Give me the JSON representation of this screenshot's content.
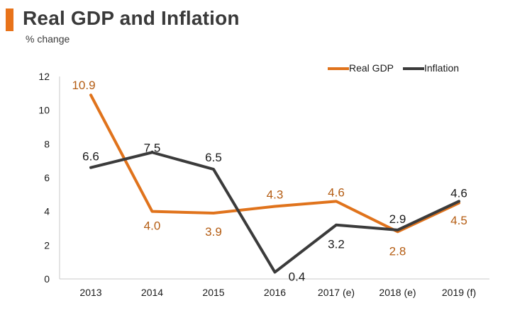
{
  "header": {
    "title": "Real GDP and Inflation",
    "subtitle": "% change"
  },
  "colors": {
    "accent": "#e8731a",
    "gdp_line": "#e0731c",
    "gdp_label": "#b45c12",
    "inflation_line": "#3b3b3b",
    "inflation_label": "#1a1a1a",
    "axis_text": "#1a1a1a"
  },
  "chart_data": {
    "type": "line",
    "title": "Real GDP and Inflation",
    "subtitle": "% change",
    "xlabel": "",
    "ylabel": "",
    "categories": [
      "2013",
      "2014",
      "2015",
      "2016",
      "2017 (e)",
      "2018 (e)",
      "2019 (f)"
    ],
    "ylim": [
      0,
      12
    ],
    "yticks": [
      0,
      2,
      4,
      6,
      8,
      10,
      12
    ],
    "grid": false,
    "legend": "top-right",
    "series": [
      {
        "name": "Real GDP",
        "values": [
          10.9,
          4.0,
          3.9,
          4.3,
          4.6,
          2.8,
          4.5
        ],
        "labels": [
          "10.9",
          "4.0",
          "3.9",
          "4.3",
          "4.6",
          "2.8",
          "4.5"
        ]
      },
      {
        "name": "Inflation",
        "values": [
          6.6,
          7.5,
          6.5,
          0.4,
          3.2,
          2.9,
          4.6
        ],
        "labels": [
          "6.6",
          "7.5",
          "6.5",
          "0.4",
          "3.2",
          "2.9",
          "4.6"
        ]
      }
    ]
  }
}
